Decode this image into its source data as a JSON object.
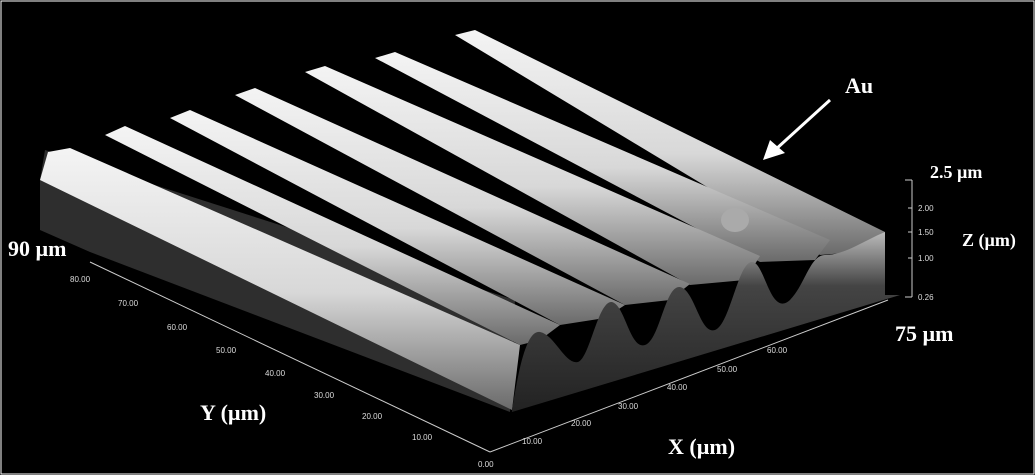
{
  "labels": {
    "au": "Au",
    "z_max": "2.5 µm",
    "z_axis": "Z (µm)",
    "y_max": "90 µm",
    "x_max": "75 µm",
    "y_axis": "Y (µm)",
    "x_axis": "X (µm)",
    "origin": "0.00"
  },
  "x_ticks": [
    "10.00",
    "20.00",
    "30.00",
    "40.00",
    "50.00",
    "60.00"
  ],
  "y_ticks": [
    "10.00",
    "20.00",
    "30.00",
    "40.00",
    "50.00",
    "60.00",
    "70.00",
    "80.00"
  ],
  "z_ticks": [
    "2.00",
    "1.50",
    "1.00",
    "0.26"
  ]
}
